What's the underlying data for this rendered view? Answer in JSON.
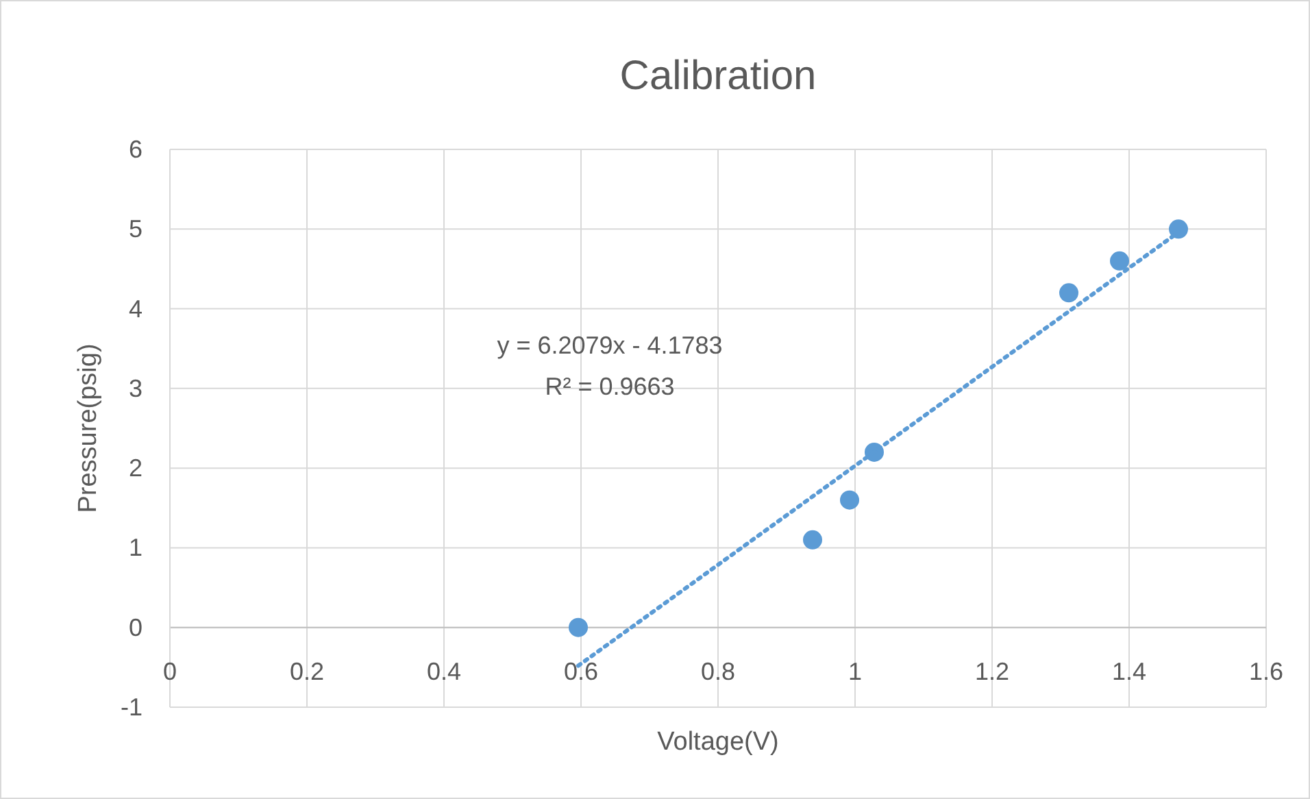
{
  "chart_data": {
    "type": "scatter",
    "title": "Calibration",
    "xlabel": "Voltage(V)",
    "ylabel": "Pressure(psig)",
    "annotations": [
      "y = 6.2079x - 4.1783",
      "R² = 0.9663"
    ],
    "series": [
      {
        "color": "#5b9bd5",
        "x": [
          0.596,
          0.938,
          0.992,
          1.028,
          1.312,
          1.386,
          1.472
        ],
        "values": [
          0,
          1.1,
          1.6,
          2.2,
          4.2,
          4.6,
          5.0
        ],
        "marker": "circle"
      },
      {
        "type": "line",
        "color": "#5b9bd5",
        "x": [
          0.596,
          1.472
        ],
        "values": [
          -0.48,
          4.96
        ],
        "line_style": "dotted"
      }
    ],
    "xlim": [
      0,
      1.6
    ],
    "xticks": [
      0,
      0.2,
      0.4,
      0.6,
      0.8,
      1,
      1.2,
      1.4,
      1.6
    ],
    "ylim": [
      -1,
      6
    ],
    "yticks": [
      -1,
      0,
      1,
      2,
      3,
      4,
      5,
      6
    ],
    "grid": true
  }
}
